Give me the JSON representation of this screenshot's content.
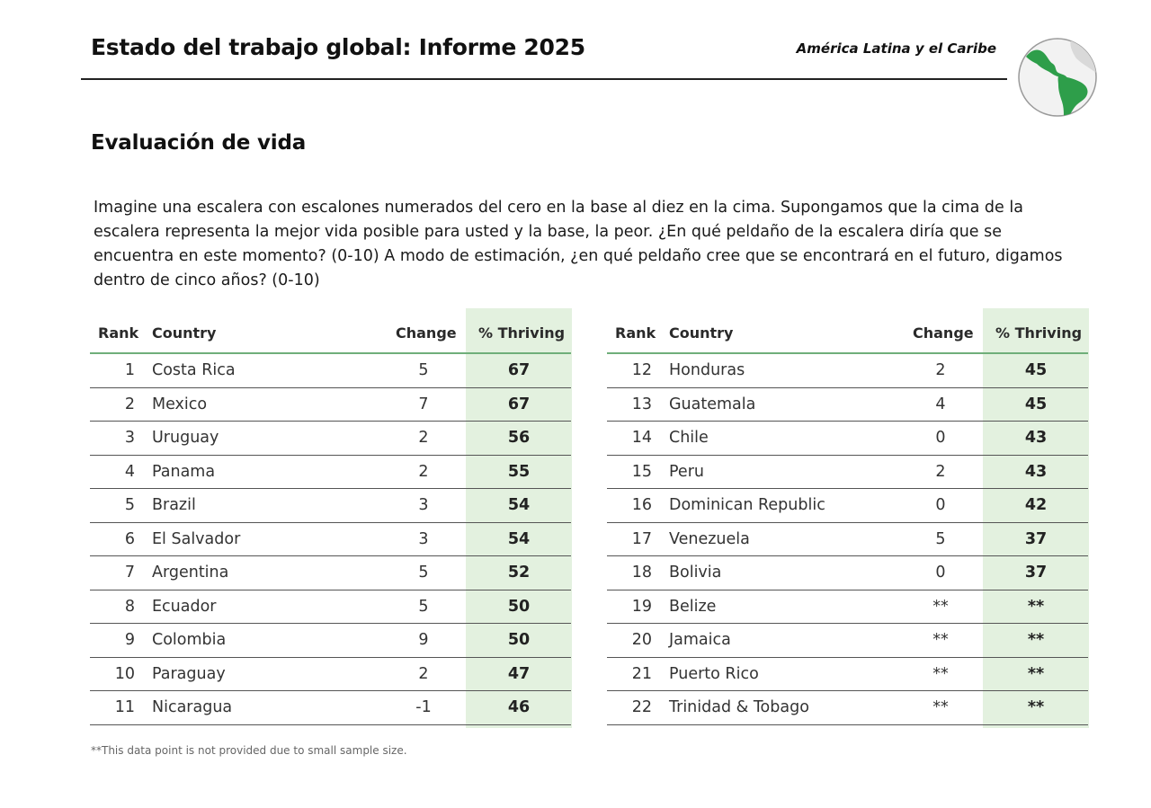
{
  "header": {
    "title": "Estado del trabajo global: Informe 2025",
    "region": "América Latina y el Caribe"
  },
  "section": {
    "title": "Evaluación de vida",
    "question": "Imagine una escalera con escalones numerados del cero en la base al diez en la cima. Supongamos que la cima de la escalera representa la mejor vida posible para usted y la base, la peor. ¿En qué peldaño de la escalera diría que se encuentra en este momento? (0-10) A modo de estimación, ¿en qué peldaño cree que se encontrará en el futuro, digamos dentro de cinco años? (0-10)"
  },
  "table": {
    "headers": {
      "rank": "Rank",
      "country": "Country",
      "change": "Change",
      "thriving": "% Thriving"
    },
    "left": [
      {
        "rank": "1",
        "country": "Costa Rica",
        "change": "5",
        "thriving": "67"
      },
      {
        "rank": "2",
        "country": "Mexico",
        "change": "7",
        "thriving": "67"
      },
      {
        "rank": "3",
        "country": "Uruguay",
        "change": "2",
        "thriving": "56"
      },
      {
        "rank": "4",
        "country": "Panama",
        "change": "2",
        "thriving": "55"
      },
      {
        "rank": "5",
        "country": "Brazil",
        "change": "3",
        "thriving": "54"
      },
      {
        "rank": "6",
        "country": "El Salvador",
        "change": "3",
        "thriving": "54"
      },
      {
        "rank": "7",
        "country": "Argentina",
        "change": "5",
        "thriving": "52"
      },
      {
        "rank": "8",
        "country": "Ecuador",
        "change": "5",
        "thriving": "50"
      },
      {
        "rank": "9",
        "country": "Colombia",
        "change": "9",
        "thriving": "50"
      },
      {
        "rank": "10",
        "country": "Paraguay",
        "change": "2",
        "thriving": "47"
      },
      {
        "rank": "11",
        "country": "Nicaragua",
        "change": "-1",
        "thriving": "46"
      }
    ],
    "right": [
      {
        "rank": "12",
        "country": "Honduras",
        "change": "2",
        "thriving": "45"
      },
      {
        "rank": "13",
        "country": "Guatemala",
        "change": "4",
        "thriving": "45"
      },
      {
        "rank": "14",
        "country": "Chile",
        "change": "0",
        "thriving": "43"
      },
      {
        "rank": "15",
        "country": "Peru",
        "change": "2",
        "thriving": "43"
      },
      {
        "rank": "16",
        "country": "Dominican Republic",
        "change": "0",
        "thriving": "42"
      },
      {
        "rank": "17",
        "country": "Venezuela",
        "change": "5",
        "thriving": "37"
      },
      {
        "rank": "18",
        "country": "Bolivia",
        "change": "0",
        "thriving": "37"
      },
      {
        "rank": "19",
        "country": "Belize",
        "change": "**",
        "thriving": "**"
      },
      {
        "rank": "20",
        "country": "Jamaica",
        "change": "**",
        "thriving": "**"
      },
      {
        "rank": "21",
        "country": "Puerto Rico",
        "change": "**",
        "thriving": "**"
      },
      {
        "rank": "22",
        "country": "Trinidad & Tobago",
        "change": "**",
        "thriving": "**"
      }
    ]
  },
  "footnote": "**This data point is not provided due to small sample size.",
  "icons": {
    "globe": "globe-americas-icon"
  },
  "colors": {
    "thriving_band": "#e3f1df",
    "header_rule": "#6fae7a",
    "map_land": "#2e9e4a"
  }
}
